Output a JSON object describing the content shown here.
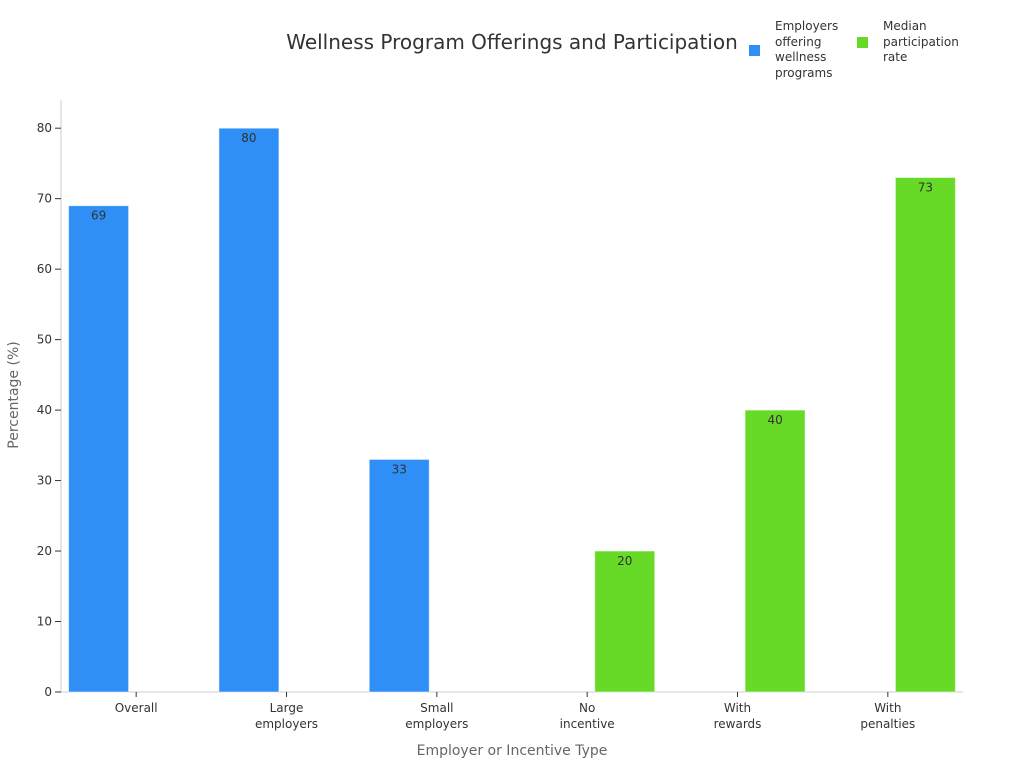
{
  "chart_data": {
    "type": "bar",
    "title": "Wellness Program Offerings and Participation",
    "xlabel": "Employer or Incentive Type",
    "ylabel": "Percentage (%)",
    "ylim": [
      0,
      84
    ],
    "yticks": [
      0,
      10,
      20,
      30,
      40,
      50,
      60,
      70,
      80
    ],
    "grid": false,
    "legend_position": "top-right",
    "categories": [
      [
        "Overall"
      ],
      [
        "Large",
        "employers"
      ],
      [
        "Small",
        "employers"
      ],
      [
        "No",
        "incentive"
      ],
      [
        "With",
        "rewards"
      ],
      [
        "With",
        "penalties"
      ]
    ],
    "series": [
      {
        "name": "Employers offering wellness programs",
        "color": "#2f8ff7",
        "values": [
          69,
          80,
          33,
          null,
          null,
          null
        ]
      },
      {
        "name": "Median participation rate",
        "color": "#66da26",
        "values": [
          null,
          null,
          null,
          20,
          40,
          73
        ]
      }
    ],
    "legend_lines": [
      [
        "Employers",
        "offering",
        "wellness",
        "programs"
      ],
      [
        "Median",
        "participation",
        "rate"
      ]
    ]
  }
}
